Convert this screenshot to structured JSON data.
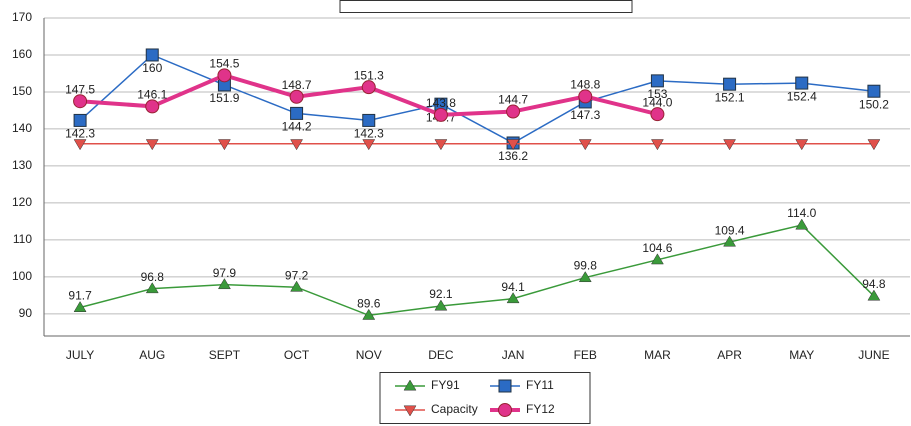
{
  "chart_data": {
    "type": "line",
    "categories": [
      "JULY",
      "AUG",
      "SEPT",
      "OCT",
      "NOV",
      "DEC",
      "JAN",
      "FEB",
      "MAR",
      "APR",
      "MAY",
      "JUNE"
    ],
    "series": [
      {
        "name": "FY91",
        "color": "#3a9a3a",
        "marker": "triangle-up",
        "label_pos": "above",
        "values": [
          91.7,
          96.8,
          97.9,
          97.2,
          89.6,
          92.1,
          94.1,
          99.8,
          104.6,
          109.4,
          114.0,
          94.8
        ],
        "value_labels": [
          "91.7",
          "96.8",
          "97.9",
          "97.2",
          "89.6",
          "92.1",
          "94.1",
          "99.8",
          "104.6",
          "109.4",
          "114.0",
          "94.8"
        ]
      },
      {
        "name": "FY11",
        "color": "#2b6bc4",
        "marker": "square",
        "label_pos": "below",
        "values": [
          142.3,
          160,
          151.9,
          144.2,
          142.3,
          146.7,
          136.2,
          147.3,
          153,
          152.1,
          152.4,
          150.2
        ],
        "value_labels": [
          "142.3",
          "160",
          "151.9",
          "144.2",
          "142.3",
          "146.7",
          "136.2",
          "147.3",
          "153",
          "152.1",
          "152.4",
          "150.2"
        ]
      },
      {
        "name": "Capacity",
        "color": "#e0504a",
        "marker": "triangle-down",
        "values": [
          136,
          136,
          136,
          136,
          136,
          136,
          136,
          136,
          136,
          136,
          136,
          136
        ]
      },
      {
        "name": "FY12",
        "color": "#e0338a",
        "marker": "circle",
        "label_pos": "above",
        "width": 4,
        "values": [
          147.5,
          146.1,
          154.5,
          148.7,
          151.3,
          143.8,
          144.7,
          148.8,
          144.0,
          null,
          null,
          null
        ],
        "value_labels": [
          "147.5",
          "146.1",
          "154.5",
          "148.7",
          "151.3",
          "143.8",
          "144.7",
          "148.8",
          "144.0",
          null,
          null,
          null
        ]
      }
    ],
    "ylim": [
      84,
      170
    ],
    "yticks": [
      90,
      100,
      110,
      120,
      130,
      140,
      150,
      160,
      170
    ],
    "grid": true,
    "legend": "bottom"
  }
}
